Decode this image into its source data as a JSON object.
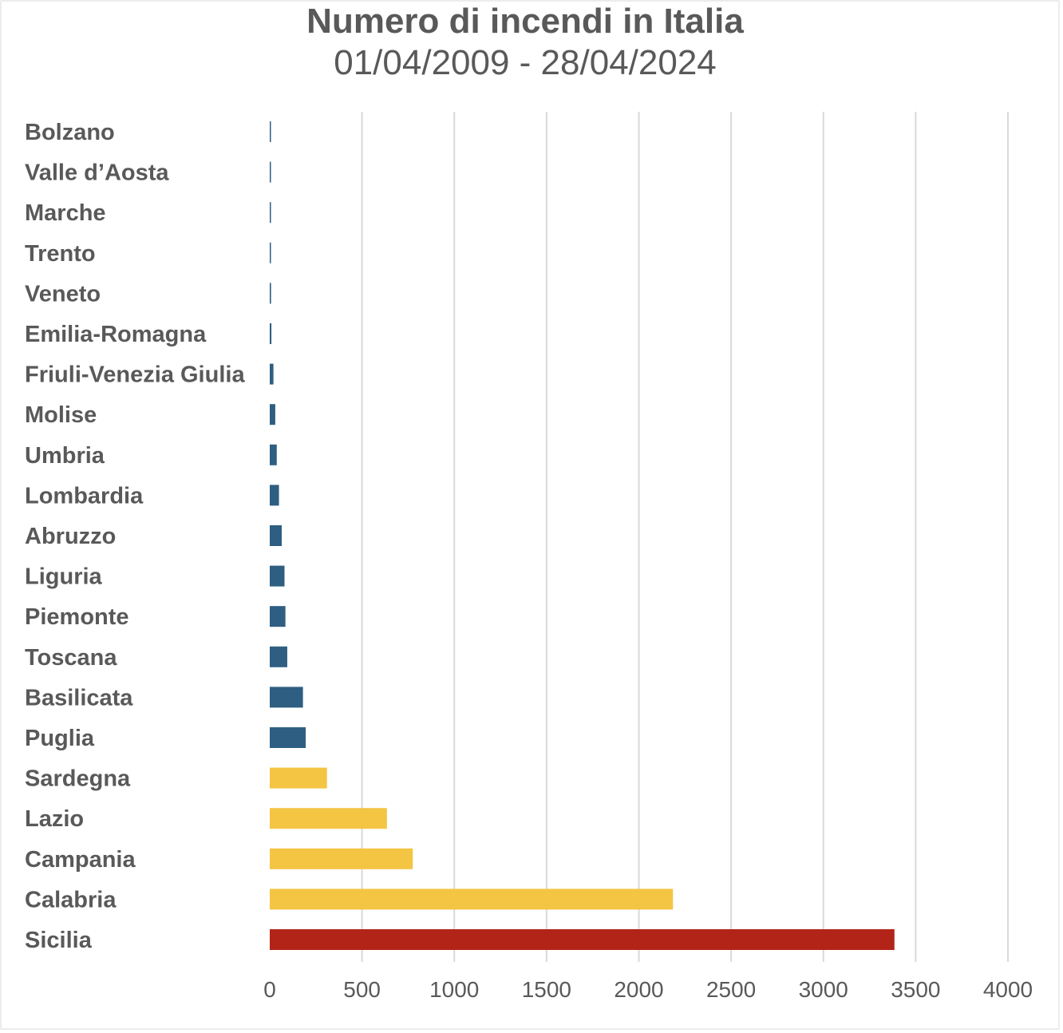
{
  "chart_data": {
    "type": "bar",
    "orientation": "horizontal",
    "title": "Numero di incendi in Italia",
    "subtitle": "01/04/2009 - 28/04/2024",
    "xlabel": "",
    "ylabel": "",
    "xlim": [
      0,
      4000
    ],
    "x_ticks": [
      "0",
      "500",
      "1000",
      "1500",
      "2000",
      "2500",
      "3000",
      "3500",
      "4000"
    ],
    "grid": "vertical",
    "legend": "none",
    "categories": [
      "Bolzano",
      "Valle d’Aosta",
      "Marche",
      "Trento",
      "Veneto",
      "Emilia-Romagna",
      "Friuli-Venezia Giulia",
      "Molise",
      "Umbria",
      "Lombardia",
      "Abruzzo",
      "Liguria",
      "Piemonte",
      "Toscana",
      "Basilicata",
      "Puglia",
      "Sardegna",
      "Lazio",
      "Campania",
      "Calabria",
      "Sicilia"
    ],
    "values": [
      3,
      4,
      5,
      6,
      7,
      9,
      20,
      30,
      38,
      50,
      65,
      80,
      85,
      95,
      180,
      195,
      310,
      635,
      775,
      2185,
      3385
    ],
    "bar_colors": [
      "#2e5f82",
      "#2e5f82",
      "#2e5f82",
      "#2e5f82",
      "#2e5f82",
      "#2e5f82",
      "#2e5f82",
      "#2e5f82",
      "#2e5f82",
      "#2e5f82",
      "#2e5f82",
      "#2e5f82",
      "#2e5f82",
      "#2e5f82",
      "#2e5f82",
      "#2e5f82",
      "#f4c443",
      "#f4c443",
      "#f4c443",
      "#f4c443",
      "#b22318"
    ]
  }
}
